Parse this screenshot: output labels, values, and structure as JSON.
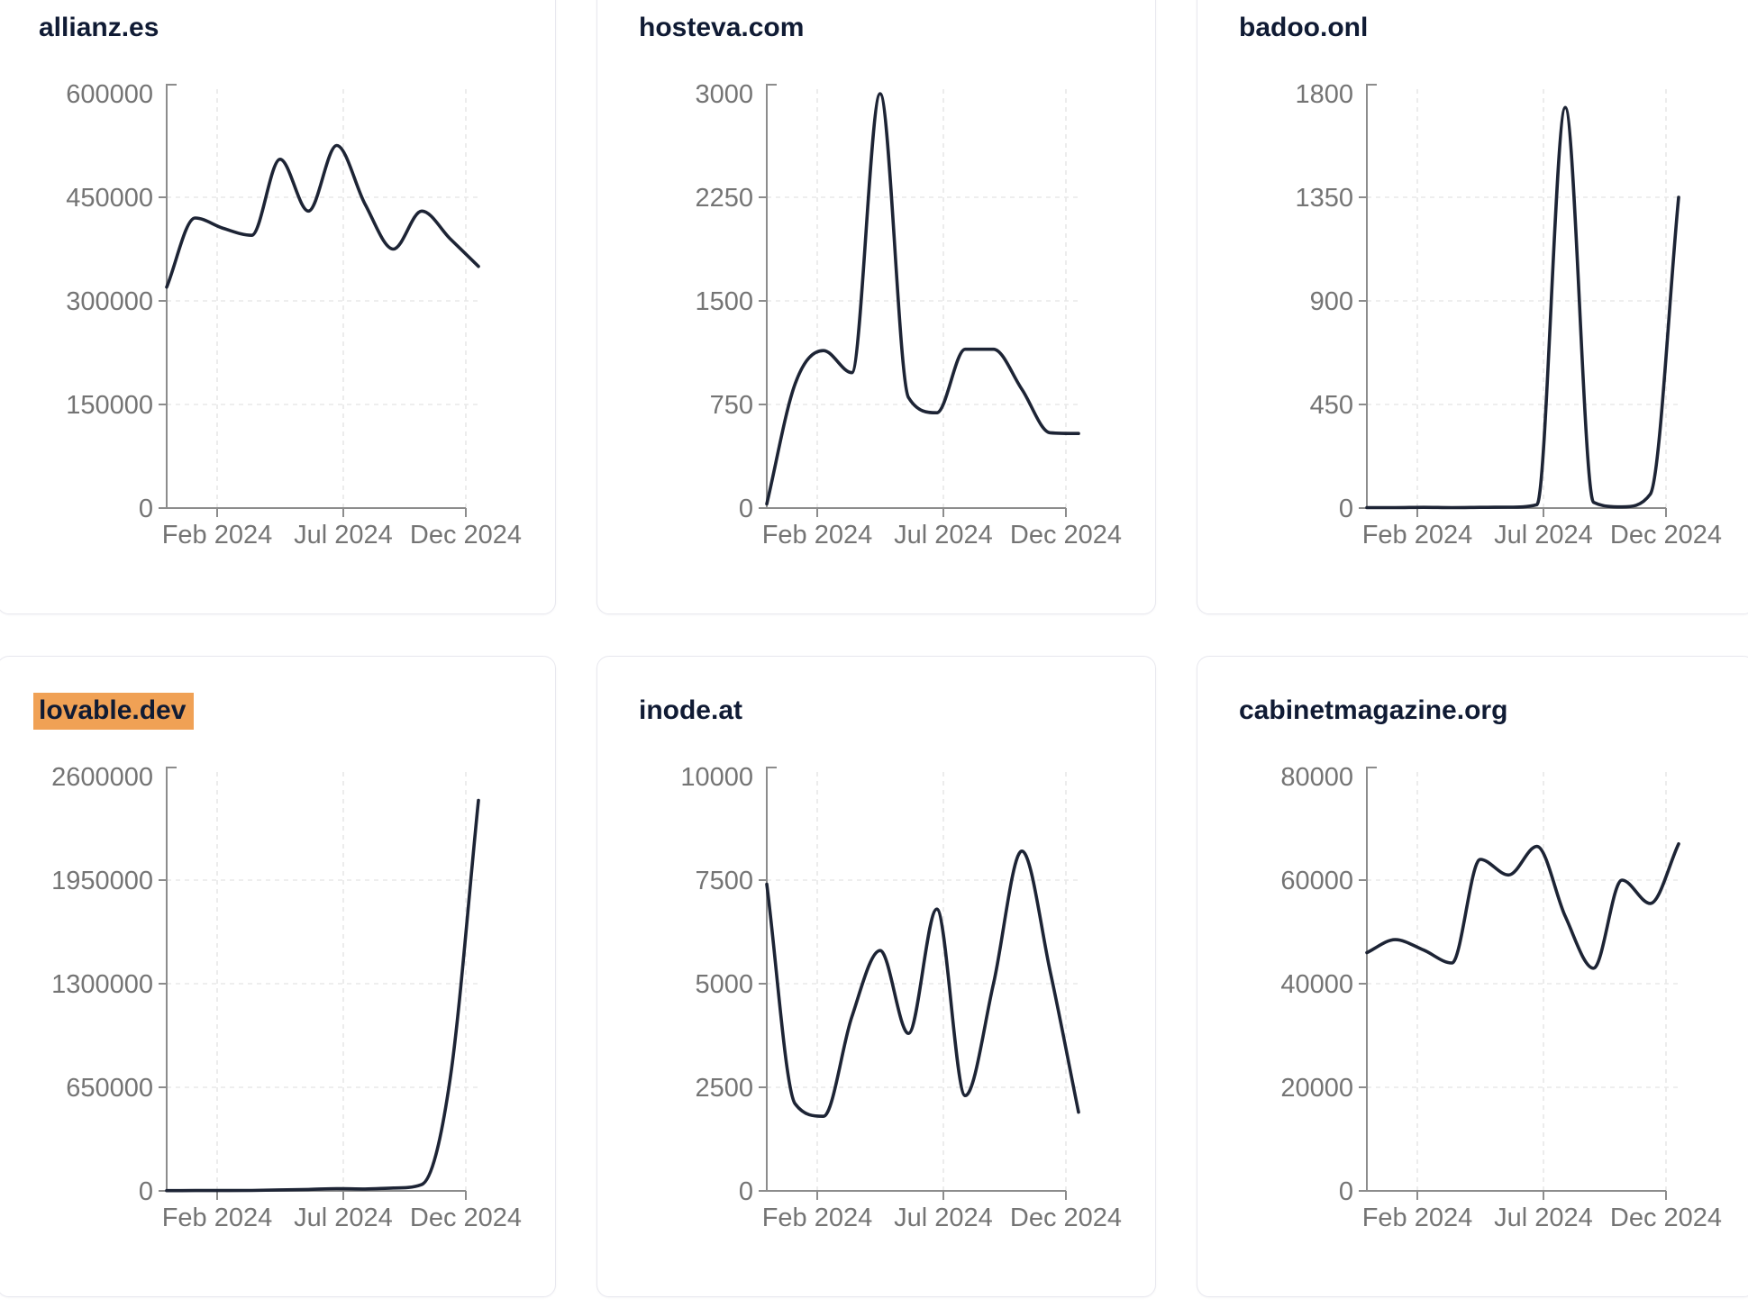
{
  "style": {
    "line_color": "#1d2435",
    "axis_color": "#8c8c8c",
    "grid_color": "#e8e8e8",
    "tick_label_color": "#747474",
    "title_color": "#101b34",
    "card_border_color": "#e8e8ef",
    "highlight_color": "#f0a155",
    "background": "#ffffff"
  },
  "chart_data": [
    {
      "type": "line",
      "title": "allianz.es",
      "title_highlighted": false,
      "x": [
        "Jan 2024",
        "Feb 2024",
        "Mar 2024",
        "Apr 2024",
        "May 2024",
        "Jun 2024",
        "Jul 2024",
        "Aug 2024",
        "Sep 2024",
        "Oct 2024",
        "Nov 2024",
        "Dec 2024"
      ],
      "values": [
        320000,
        420000,
        405000,
        395000,
        505000,
        430000,
        525000,
        440000,
        375000,
        430000,
        390000,
        350000
      ],
      "ylim": [
        0,
        600000
      ],
      "yticks": [
        0,
        150000,
        300000,
        450000,
        600000
      ],
      "xticklabels": [
        "Feb 2024",
        "Jul 2024",
        "Dec 2024"
      ],
      "grid": true,
      "legend": "none"
    },
    {
      "type": "line",
      "title": "hosteva.com",
      "title_highlighted": false,
      "x": [
        "Jan 2024",
        "Feb 2024",
        "Mar 2024",
        "Apr 2024",
        "May 2024",
        "Jun 2024",
        "Jul 2024",
        "Aug 2024",
        "Sep 2024",
        "Oct 2024",
        "Nov 2024",
        "Dec 2024"
      ],
      "values": [
        30,
        900,
        1140,
        980,
        3000,
        800,
        690,
        1150,
        1150,
        860,
        545,
        540
      ],
      "ylim": [
        0,
        3000
      ],
      "yticks": [
        0,
        750,
        1500,
        2250,
        3000
      ],
      "xticklabels": [
        "Feb 2024",
        "Jul 2024",
        "Dec 2024"
      ],
      "grid": true,
      "legend": "none"
    },
    {
      "type": "line",
      "title": "badoo.onl",
      "title_highlighted": false,
      "x": [
        "Jan 2024",
        "Feb 2024",
        "Mar 2024",
        "Apr 2024",
        "May 2024",
        "Jun 2024",
        "Jul 2024",
        "Aug 2024",
        "Sep 2024",
        "Oct 2024",
        "Nov 2024",
        "Dec 2024"
      ],
      "values": [
        2,
        2,
        3,
        2,
        3,
        4,
        15,
        1740,
        25,
        5,
        60,
        1350
      ],
      "ylim": [
        0,
        1800
      ],
      "yticks": [
        0,
        450,
        900,
        1350,
        1800
      ],
      "xticklabels": [
        "Feb 2024",
        "Jul 2024",
        "Dec 2024"
      ],
      "grid": true,
      "legend": "none"
    },
    {
      "type": "line",
      "title": "lovable.dev",
      "title_highlighted": true,
      "x": [
        "Jan 2024",
        "Feb 2024",
        "Mar 2024",
        "Apr 2024",
        "May 2024",
        "Jun 2024",
        "Jul 2024",
        "Aug 2024",
        "Sep 2024",
        "Oct 2024",
        "Nov 2024",
        "Dec 2024"
      ],
      "values": [
        1500,
        2500,
        2000,
        3000,
        6000,
        9000,
        14000,
        12000,
        18000,
        40000,
        700000,
        2450000
      ],
      "ylim": [
        0,
        2600000
      ],
      "yticks": [
        0,
        650000,
        1300000,
        1950000,
        2600000
      ],
      "xticklabels": [
        "Feb 2024",
        "Jul 2024",
        "Dec 2024"
      ],
      "grid": true,
      "legend": "none"
    },
    {
      "type": "line",
      "title": "inode.at",
      "title_highlighted": false,
      "x": [
        "Jan 2024",
        "Feb 2024",
        "Mar 2024",
        "Apr 2024",
        "May 2024",
        "Jun 2024",
        "Jul 2024",
        "Aug 2024",
        "Sep 2024",
        "Oct 2024",
        "Nov 2024",
        "Dec 2024"
      ],
      "values": [
        7400,
        2100,
        1800,
        4200,
        5800,
        3800,
        6800,
        2300,
        5000,
        8200,
        5300,
        1900
      ],
      "ylim": [
        0,
        10000
      ],
      "yticks": [
        0,
        2500,
        5000,
        7500,
        10000
      ],
      "xticklabels": [
        "Feb 2024",
        "Jul 2024",
        "Dec 2024"
      ],
      "grid": true,
      "legend": "none"
    },
    {
      "type": "line",
      "title": "cabinetmagazine.org",
      "title_highlighted": false,
      "x": [
        "Jan 2024",
        "Feb 2024",
        "Mar 2024",
        "Apr 2024",
        "May 2024",
        "Jun 2024",
        "Jul 2024",
        "Aug 2024",
        "Sep 2024",
        "Oct 2024",
        "Nov 2024",
        "Dec 2024"
      ],
      "values": [
        46000,
        48500,
        46500,
        44000,
        64000,
        61000,
        66500,
        53000,
        43000,
        60000,
        55500,
        67000
      ],
      "ylim": [
        0,
        80000
      ],
      "yticks": [
        0,
        20000,
        40000,
        60000,
        80000
      ],
      "xticklabels": [
        "Feb 2024",
        "Jul 2024",
        "Dec 2024"
      ],
      "grid": true,
      "legend": "none"
    }
  ]
}
